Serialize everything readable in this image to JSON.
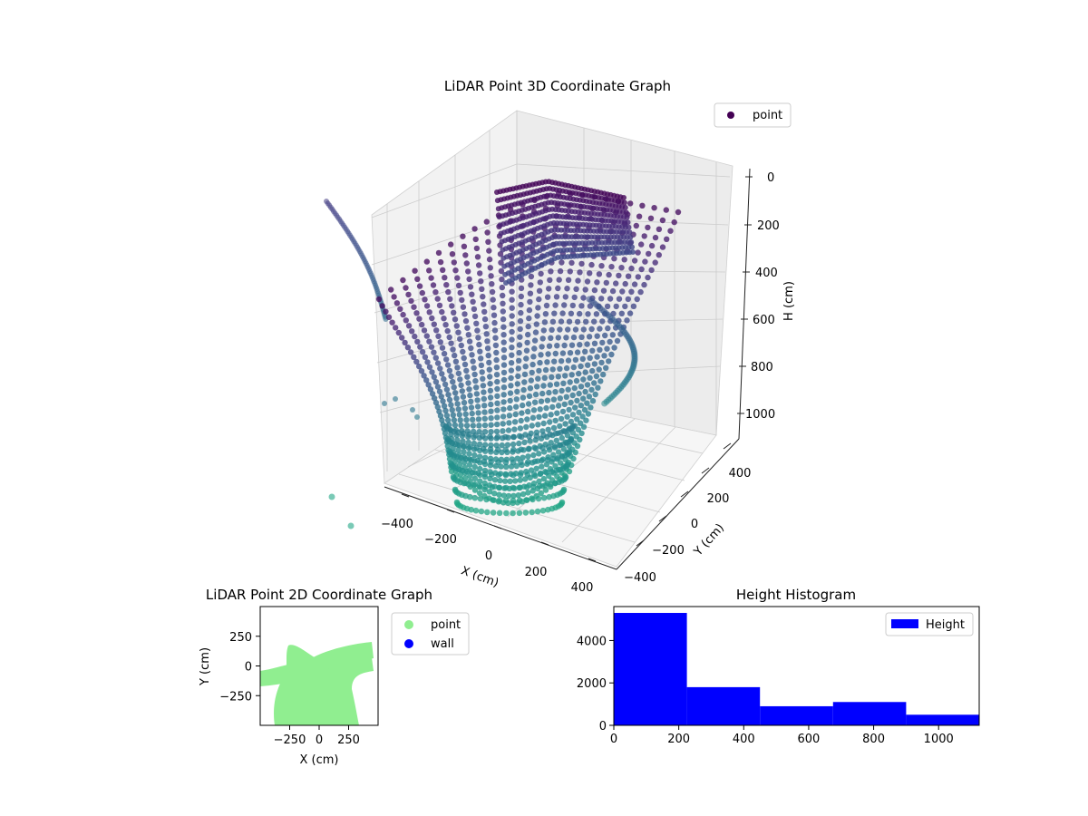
{
  "chart_data": [
    {
      "id": "scatter3d",
      "type": "scatter",
      "title": "LiDAR Point 3D Coordinate Graph",
      "xlabel": "X (cm)",
      "ylabel": "Y (cm)",
      "zlabel": "H (cm)",
      "xlim": [
        -450,
        450
      ],
      "ylim": [
        -450,
        450
      ],
      "zlim": [
        1100,
        0
      ],
      "xticks": [
        "−400",
        "−200",
        "0",
        "200",
        "400"
      ],
      "yticks": [
        "400",
        "200",
        "0",
        "−200",
        "−400"
      ],
      "zticks": [
        "0",
        "200",
        "400",
        "600",
        "800",
        "1000"
      ],
      "colormap": "viridis",
      "legend": {
        "placement": "top-right",
        "entries": [
          {
            "name": "point",
            "color": "#440154"
          }
        ]
      }
    },
    {
      "id": "scatter2d",
      "type": "scatter",
      "title": "LiDAR Point 2D Coordinate Graph",
      "xlabel": "X (cm)",
      "ylabel": "Y (cm)",
      "xlim": [
        -500,
        500
      ],
      "ylim": [
        -500,
        500
      ],
      "xticks": [
        -250,
        0,
        250
      ],
      "yticks": [
        250,
        0,
        -250
      ],
      "xtick_labels": [
        "−250",
        "0",
        "250"
      ],
      "ytick_labels": [
        "250",
        "0",
        "−250"
      ],
      "series": [
        {
          "name": "point",
          "color": "#90ee90"
        },
        {
          "name": "wall",
          "color": "#0000ff"
        }
      ],
      "legend": {
        "placement": "outside-right",
        "entries": [
          "point",
          "wall"
        ]
      }
    },
    {
      "id": "histogram",
      "type": "bar",
      "title": "Height Histogram",
      "bins": [
        {
          "start": 0,
          "end": 225,
          "value": 5300
        },
        {
          "start": 225,
          "end": 450,
          "value": 1800
        },
        {
          "start": 450,
          "end": 675,
          "value": 900
        },
        {
          "start": 675,
          "end": 900,
          "value": 1100
        },
        {
          "start": 900,
          "end": 1125,
          "value": 500
        }
      ],
      "xlim": [
        0,
        1125
      ],
      "ylim": [
        0,
        5600
      ],
      "xticks": [
        0,
        200,
        400,
        600,
        800,
        1000
      ],
      "yticks": [
        0,
        2000,
        4000
      ],
      "color": "#0000ff",
      "legend": {
        "placement": "top-right",
        "entries": [
          {
            "name": "Height",
            "color": "#0000ff"
          }
        ]
      }
    }
  ]
}
